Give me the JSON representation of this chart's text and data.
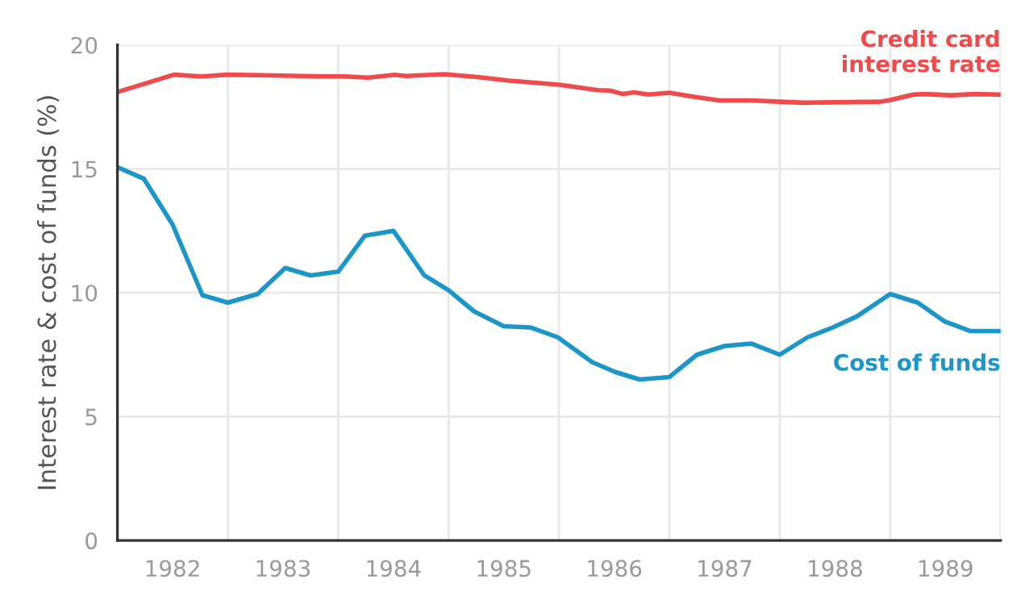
{
  "chart_data": {
    "type": "line",
    "ylabel": "Interest rate & cost of funds (%)",
    "xlim": [
      1982,
      1990
    ],
    "ylim": [
      0,
      20
    ],
    "xticks": [
      {
        "value": 1982,
        "label": null
      },
      {
        "value": 1982.5,
        "label": "1982"
      },
      {
        "value": 1983,
        "label": null
      },
      {
        "value": 1983.5,
        "label": "1983"
      },
      {
        "value": 1984,
        "label": null
      },
      {
        "value": 1984.5,
        "label": "1984"
      },
      {
        "value": 1985,
        "label": null
      },
      {
        "value": 1985.5,
        "label": "1985"
      },
      {
        "value": 1986,
        "label": null
      },
      {
        "value": 1986.5,
        "label": "1986"
      },
      {
        "value": 1987,
        "label": null
      },
      {
        "value": 1987.5,
        "label": "1987"
      },
      {
        "value": 1988,
        "label": null
      },
      {
        "value": 1988.5,
        "label": "1988"
      },
      {
        "value": 1989,
        "label": null
      },
      {
        "value": 1989.5,
        "label": "1989"
      },
      {
        "value": 1990,
        "label": null
      }
    ],
    "yticks": [
      0,
      5,
      10,
      15,
      20
    ],
    "grid": true,
    "legend": false,
    "marker": "none",
    "line_style": "solid",
    "series": [
      {
        "name": "Credit card\ninterest rate",
        "color": "#f04a4a",
        "x": [
          1982.0,
          1982.51,
          1982.75,
          1983.0,
          1983.41,
          1983.84,
          1984.06,
          1984.27,
          1984.51,
          1984.62,
          1984.96,
          1985.28,
          1985.55,
          1986.0,
          1986.35,
          1986.46,
          1986.58,
          1986.68,
          1986.81,
          1987.0,
          1987.21,
          1987.45,
          1987.74,
          1988.0,
          1988.22,
          1988.91,
          1989.0,
          1989.21,
          1989.31,
          1989.55,
          1989.77,
          1990.0
        ],
        "values": [
          18.1,
          18.8,
          18.73,
          18.8,
          18.77,
          18.73,
          18.73,
          18.68,
          18.8,
          18.75,
          18.82,
          18.7,
          18.56,
          18.4,
          18.18,
          18.16,
          18.02,
          18.09,
          18.0,
          18.07,
          17.92,
          17.76,
          17.76,
          17.71,
          17.67,
          17.71,
          17.78,
          18.0,
          18.02,
          17.97,
          18.02,
          18.0
        ]
      },
      {
        "name": "Cost of funds",
        "color": "#1a96c8",
        "x": [
          1982.0,
          1982.24,
          1982.5,
          1982.77,
          1983.0,
          1983.27,
          1983.52,
          1983.75,
          1984.0,
          1984.24,
          1984.5,
          1984.78,
          1985.0,
          1985.23,
          1985.5,
          1985.74,
          1985.99,
          1986.3,
          1986.51,
          1986.73,
          1987.0,
          1987.25,
          1987.5,
          1987.74,
          1988.0,
          1988.25,
          1988.48,
          1988.7,
          1989.0,
          1989.25,
          1989.49,
          1989.73,
          1990.0
        ],
        "values": [
          15.07,
          14.6,
          12.75,
          9.9,
          9.6,
          9.95,
          11.0,
          10.7,
          10.85,
          12.3,
          12.5,
          10.7,
          10.1,
          9.25,
          8.65,
          8.6,
          8.2,
          7.2,
          6.8,
          6.5,
          6.6,
          7.5,
          7.85,
          7.95,
          7.5,
          8.2,
          8.6,
          9.05,
          9.95,
          9.6,
          8.85,
          8.45,
          8.45
        ]
      }
    ]
  }
}
